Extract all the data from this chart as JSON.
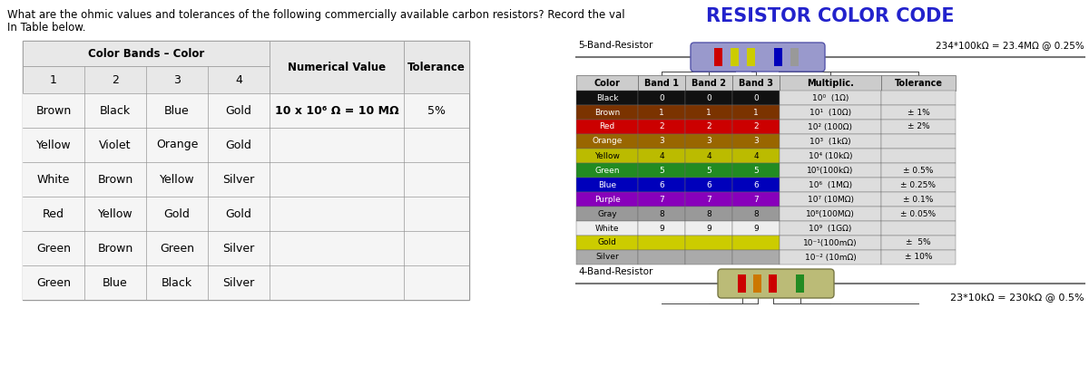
{
  "title_line1": "What are the ohmic values and tolerances of the following commercially available carbon resistors? Record the val",
  "title_line2": "In Table below.",
  "left_table_header_merged": "Color Bands – Color",
  "left_table_col_headers": [
    "1",
    "2",
    "3",
    "4",
    "Numerical Value",
    "Tolerance"
  ],
  "left_table_rows": [
    [
      "Brown",
      "Black",
      "Blue",
      "Gold",
      "10 x 10⁶ Ω = 10 MΩ",
      "5%"
    ],
    [
      "Yellow",
      "Violet",
      "Orange",
      "Gold",
      "",
      ""
    ],
    [
      "White",
      "Brown",
      "Yellow",
      "Silver",
      "",
      ""
    ],
    [
      "Red",
      "Yellow",
      "Gold",
      "Gold",
      "",
      ""
    ],
    [
      "Green",
      "Brown",
      "Green",
      "Silver",
      "",
      ""
    ],
    [
      "Green",
      "Blue",
      "Black",
      "Silver",
      "",
      ""
    ]
  ],
  "resistor_title": "RESISTOR COLOR CODE",
  "five_band_label": "5-Band-Resistor",
  "four_band_label": "4-Band-Resistor",
  "five_band_eq": "234*100kΩ = 23.4MΩ @ 0.25%",
  "four_band_eq": "23*10kΩ = 230kΩ @ 0.5%",
  "color_table_headers": [
    "Color",
    "Band 1",
    "Band 2",
    "Band 3",
    "Multiplic.",
    "Tolerance"
  ],
  "color_table_rows": [
    [
      "Black",
      "0",
      "0",
      "0",
      "10⁰  (1Ω)",
      ""
    ],
    [
      "Brown",
      "1",
      "1",
      "1",
      "10¹  (10Ω)",
      "± 1%"
    ],
    [
      "Red",
      "2",
      "2",
      "2",
      "10² (100Ω)",
      "± 2%"
    ],
    [
      "Orange",
      "3",
      "3",
      "3",
      "10³  (1kΩ)",
      ""
    ],
    [
      "Yellow",
      "4",
      "4",
      "4",
      "10⁴ (10kΩ)",
      ""
    ],
    [
      "Green",
      "5",
      "5",
      "5",
      "10⁵(100kΩ)",
      "± 0.5%"
    ],
    [
      "Blue",
      "6",
      "6",
      "6",
      "10⁶  (1MΩ)",
      "± 0.25%"
    ],
    [
      "Purple",
      "7",
      "7",
      "7",
      "10⁷ (10MΩ)",
      "± 0.1%"
    ],
    [
      "Gray",
      "8",
      "8",
      "8",
      "10⁸(100MΩ)",
      "± 0.05%"
    ],
    [
      "White",
      "9",
      "9",
      "9",
      "10⁹  (1GΩ)",
      ""
    ],
    [
      "Gold",
      "",
      "",
      "",
      "10⁻¹(100mΩ)",
      "±  5%"
    ],
    [
      "Silver",
      "",
      "",
      "",
      "10⁻² (10mΩ)",
      "± 10%"
    ]
  ],
  "row_bg_colors": [
    "#111111",
    "#7B3300",
    "#CC0000",
    "#996600",
    "#BBBB00",
    "#228B22",
    "#0000BB",
    "#8800BB",
    "#999999",
    "#EEEEEE",
    "#CCCC00",
    "#AAAAAA"
  ],
  "row_text_colors": [
    "white",
    "white",
    "white",
    "white",
    "black",
    "white",
    "white",
    "white",
    "black",
    "black",
    "black",
    "black"
  ],
  "multiplic_bg": "#DDDDDD",
  "tolerance_bg": "#DDDDDD"
}
